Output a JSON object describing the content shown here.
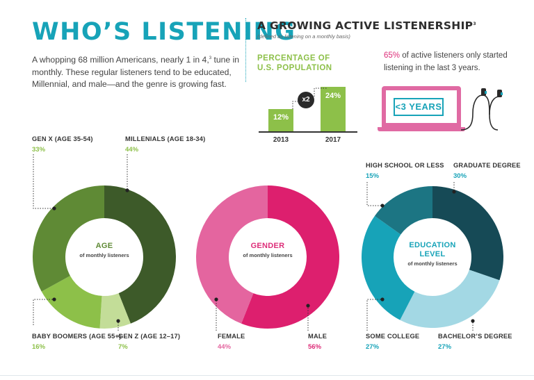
{
  "main_title": "WHO’S LISTENING",
  "intro": {
    "before": "A whopping 68 million Americans, nearly 1 in 4,",
    "sup": "3",
    "after": " tune in monthly. These regular listeners tend to be educated, Millennial, and male—and the genre is growing fast."
  },
  "listenership": {
    "title": "A GROWING ACTIVE LISTENERSHIP",
    "title_sup": "3",
    "subtitle": "(defined as listening on a monthly basis)",
    "pct_title": "PERCENTAGE OF U.S. POPULATION",
    "badge": "x2",
    "note_pct": "65%",
    "note_text": " of active listeners only started listening in the last 3 years.",
    "screen_label": "<3 YEARS"
  },
  "chart_data": [
    {
      "type": "bar",
      "title": "PERCENTAGE OF U.S. POPULATION",
      "categories": [
        "2013",
        "2017"
      ],
      "values": [
        12,
        24
      ],
      "value_labels": [
        "12%",
        "24%"
      ],
      "ylim": [
        0,
        24
      ]
    },
    {
      "type": "pie",
      "title": "AGE",
      "subtitle": "of monthly listeners",
      "slices": [
        {
          "label": "MILLENIALS (AGE 18-34)",
          "value": 44,
          "pct_label": "44%",
          "color": "#3d5a29"
        },
        {
          "label": "GEN Z (AGE 12–17)",
          "value": 7,
          "pct_label": "7%",
          "color": "#c3dd98"
        },
        {
          "label": "BABY BOOMERS (AGE 55+)",
          "value": 16,
          "pct_label": "16%",
          "color": "#8dc049"
        },
        {
          "label": "GEN X (AGE 35-54)",
          "value": 33,
          "pct_label": "33%",
          "color": "#5f8a35"
        }
      ]
    },
    {
      "type": "pie",
      "title": "GENDER",
      "subtitle": "of monthly listeners",
      "slices": [
        {
          "label": "MALE",
          "value": 56,
          "pct_label": "56%",
          "color": "#dd1f6e"
        },
        {
          "label": "FEMALE",
          "value": 44,
          "pct_label": "44%",
          "color": "#e4659f"
        }
      ]
    },
    {
      "type": "pie",
      "title": "EDUCATION LEVEL",
      "title_lines": [
        "EDUCATION",
        "LEVEL"
      ],
      "subtitle": "of monthly listeners",
      "slices": [
        {
          "label": "GRADUATE DEGREE",
          "value": 30,
          "pct_label": "30%",
          "color": "#164a56"
        },
        {
          "label": "BACHELOR’S DEGREE",
          "value": 27,
          "pct_label": "27%",
          "color": "#a3d8e4"
        },
        {
          "label": "SOME COLLEGE",
          "value": 27,
          "pct_label": "27%",
          "color": "#17a3b8"
        },
        {
          "label": "HIGH SCHOOL OR LESS",
          "value": 15,
          "pct_label": "15%",
          "color": "#1c7583"
        }
      ]
    }
  ],
  "colors": {
    "teal": "#17a3b8",
    "green": "#8dc049",
    "pink": "#dd2c78",
    "laptop_pink": "#e06aa3",
    "earphone_cable": "#2a2a2a"
  }
}
